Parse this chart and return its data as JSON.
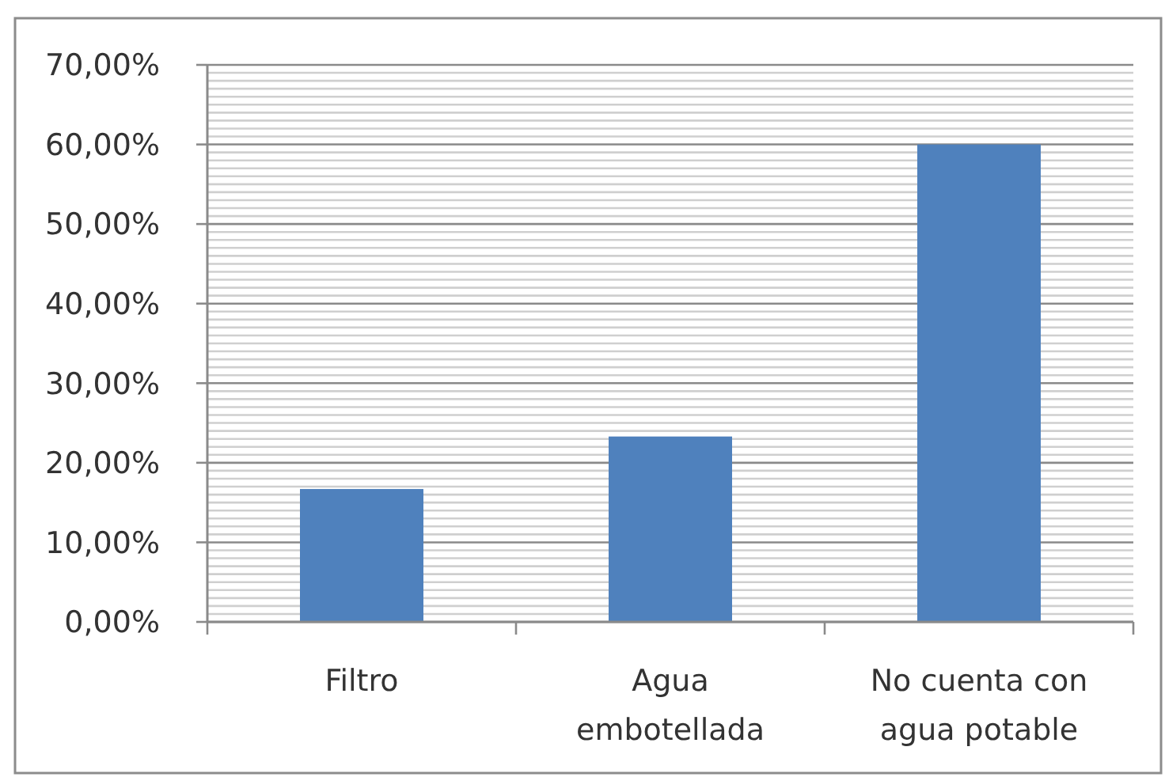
{
  "chart_data": {
    "type": "bar",
    "categories": [
      "Filtro",
      "Agua embotellada",
      "No cuenta con agua potable"
    ],
    "values": [
      16.7,
      23.3,
      60
    ],
    "color": "#4f81bd",
    "ylim": [
      0,
      70
    ],
    "yticks": [
      {
        "value": 0,
        "label": "0,00%"
      },
      {
        "value": 1,
        "label": null
      },
      {
        "value": 2,
        "label": null
      },
      {
        "value": 3,
        "label": null
      },
      {
        "value": 4,
        "label": null
      },
      {
        "value": 5,
        "label": null
      },
      {
        "value": 6,
        "label": null
      },
      {
        "value": 7,
        "label": null
      },
      {
        "value": 8,
        "label": null
      },
      {
        "value": 9,
        "label": null
      },
      {
        "value": 10,
        "label": "10,00%"
      },
      {
        "value": 11,
        "label": null
      },
      {
        "value": 12,
        "label": null
      },
      {
        "value": 13,
        "label": null
      },
      {
        "value": 14,
        "label": null
      },
      {
        "value": 15,
        "label": null
      },
      {
        "value": 16,
        "label": null
      },
      {
        "value": 17,
        "label": null
      },
      {
        "value": 18,
        "label": null
      },
      {
        "value": 19,
        "label": null
      },
      {
        "value": 20,
        "label": "20,00%"
      },
      {
        "value": 21,
        "label": null
      },
      {
        "value": 22,
        "label": null
      },
      {
        "value": 23,
        "label": null
      },
      {
        "value": 24,
        "label": null
      },
      {
        "value": 25,
        "label": null
      },
      {
        "value": 26,
        "label": null
      },
      {
        "value": 27,
        "label": null
      },
      {
        "value": 28,
        "label": null
      },
      {
        "value": 29,
        "label": null
      },
      {
        "value": 30,
        "label": "30,00%"
      },
      {
        "value": 31,
        "label": null
      },
      {
        "value": 32,
        "label": null
      },
      {
        "value": 33,
        "label": null
      },
      {
        "value": 34,
        "label": null
      },
      {
        "value": 35,
        "label": null
      },
      {
        "value": 36,
        "label": null
      },
      {
        "value": 37,
        "label": null
      },
      {
        "value": 38,
        "label": null
      },
      {
        "value": 39,
        "label": null
      },
      {
        "value": 40,
        "label": "40,00%"
      },
      {
        "value": 41,
        "label": null
      },
      {
        "value": 42,
        "label": null
      },
      {
        "value": 43,
        "label": null
      },
      {
        "value": 44,
        "label": null
      },
      {
        "value": 45,
        "label": null
      },
      {
        "value": 46,
        "label": null
      },
      {
        "value": 47,
        "label": null
      },
      {
        "value": 48,
        "label": null
      },
      {
        "value": 49,
        "label": null
      },
      {
        "value": 50,
        "label": "50,00%"
      },
      {
        "value": 51,
        "label": null
      },
      {
        "value": 52,
        "label": null
      },
      {
        "value": 53,
        "label": null
      },
      {
        "value": 54,
        "label": null
      },
      {
        "value": 55,
        "label": null
      },
      {
        "value": 56,
        "label": null
      },
      {
        "value": 57,
        "label": null
      },
      {
        "value": 58,
        "label": null
      },
      {
        "value": 59,
        "label": null
      },
      {
        "value": 60,
        "label": "60,00%"
      },
      {
        "value": 61,
        "label": null
      },
      {
        "value": 62,
        "label": null
      },
      {
        "value": 63,
        "label": null
      },
      {
        "value": 64,
        "label": null
      },
      {
        "value": 65,
        "label": null
      },
      {
        "value": 66,
        "label": null
      },
      {
        "value": 67,
        "label": null
      },
      {
        "value": 68,
        "label": null
      },
      {
        "value": 69,
        "label": null
      },
      {
        "value": 70,
        "label": "70,00%"
      }
    ],
    "grid": true
  }
}
